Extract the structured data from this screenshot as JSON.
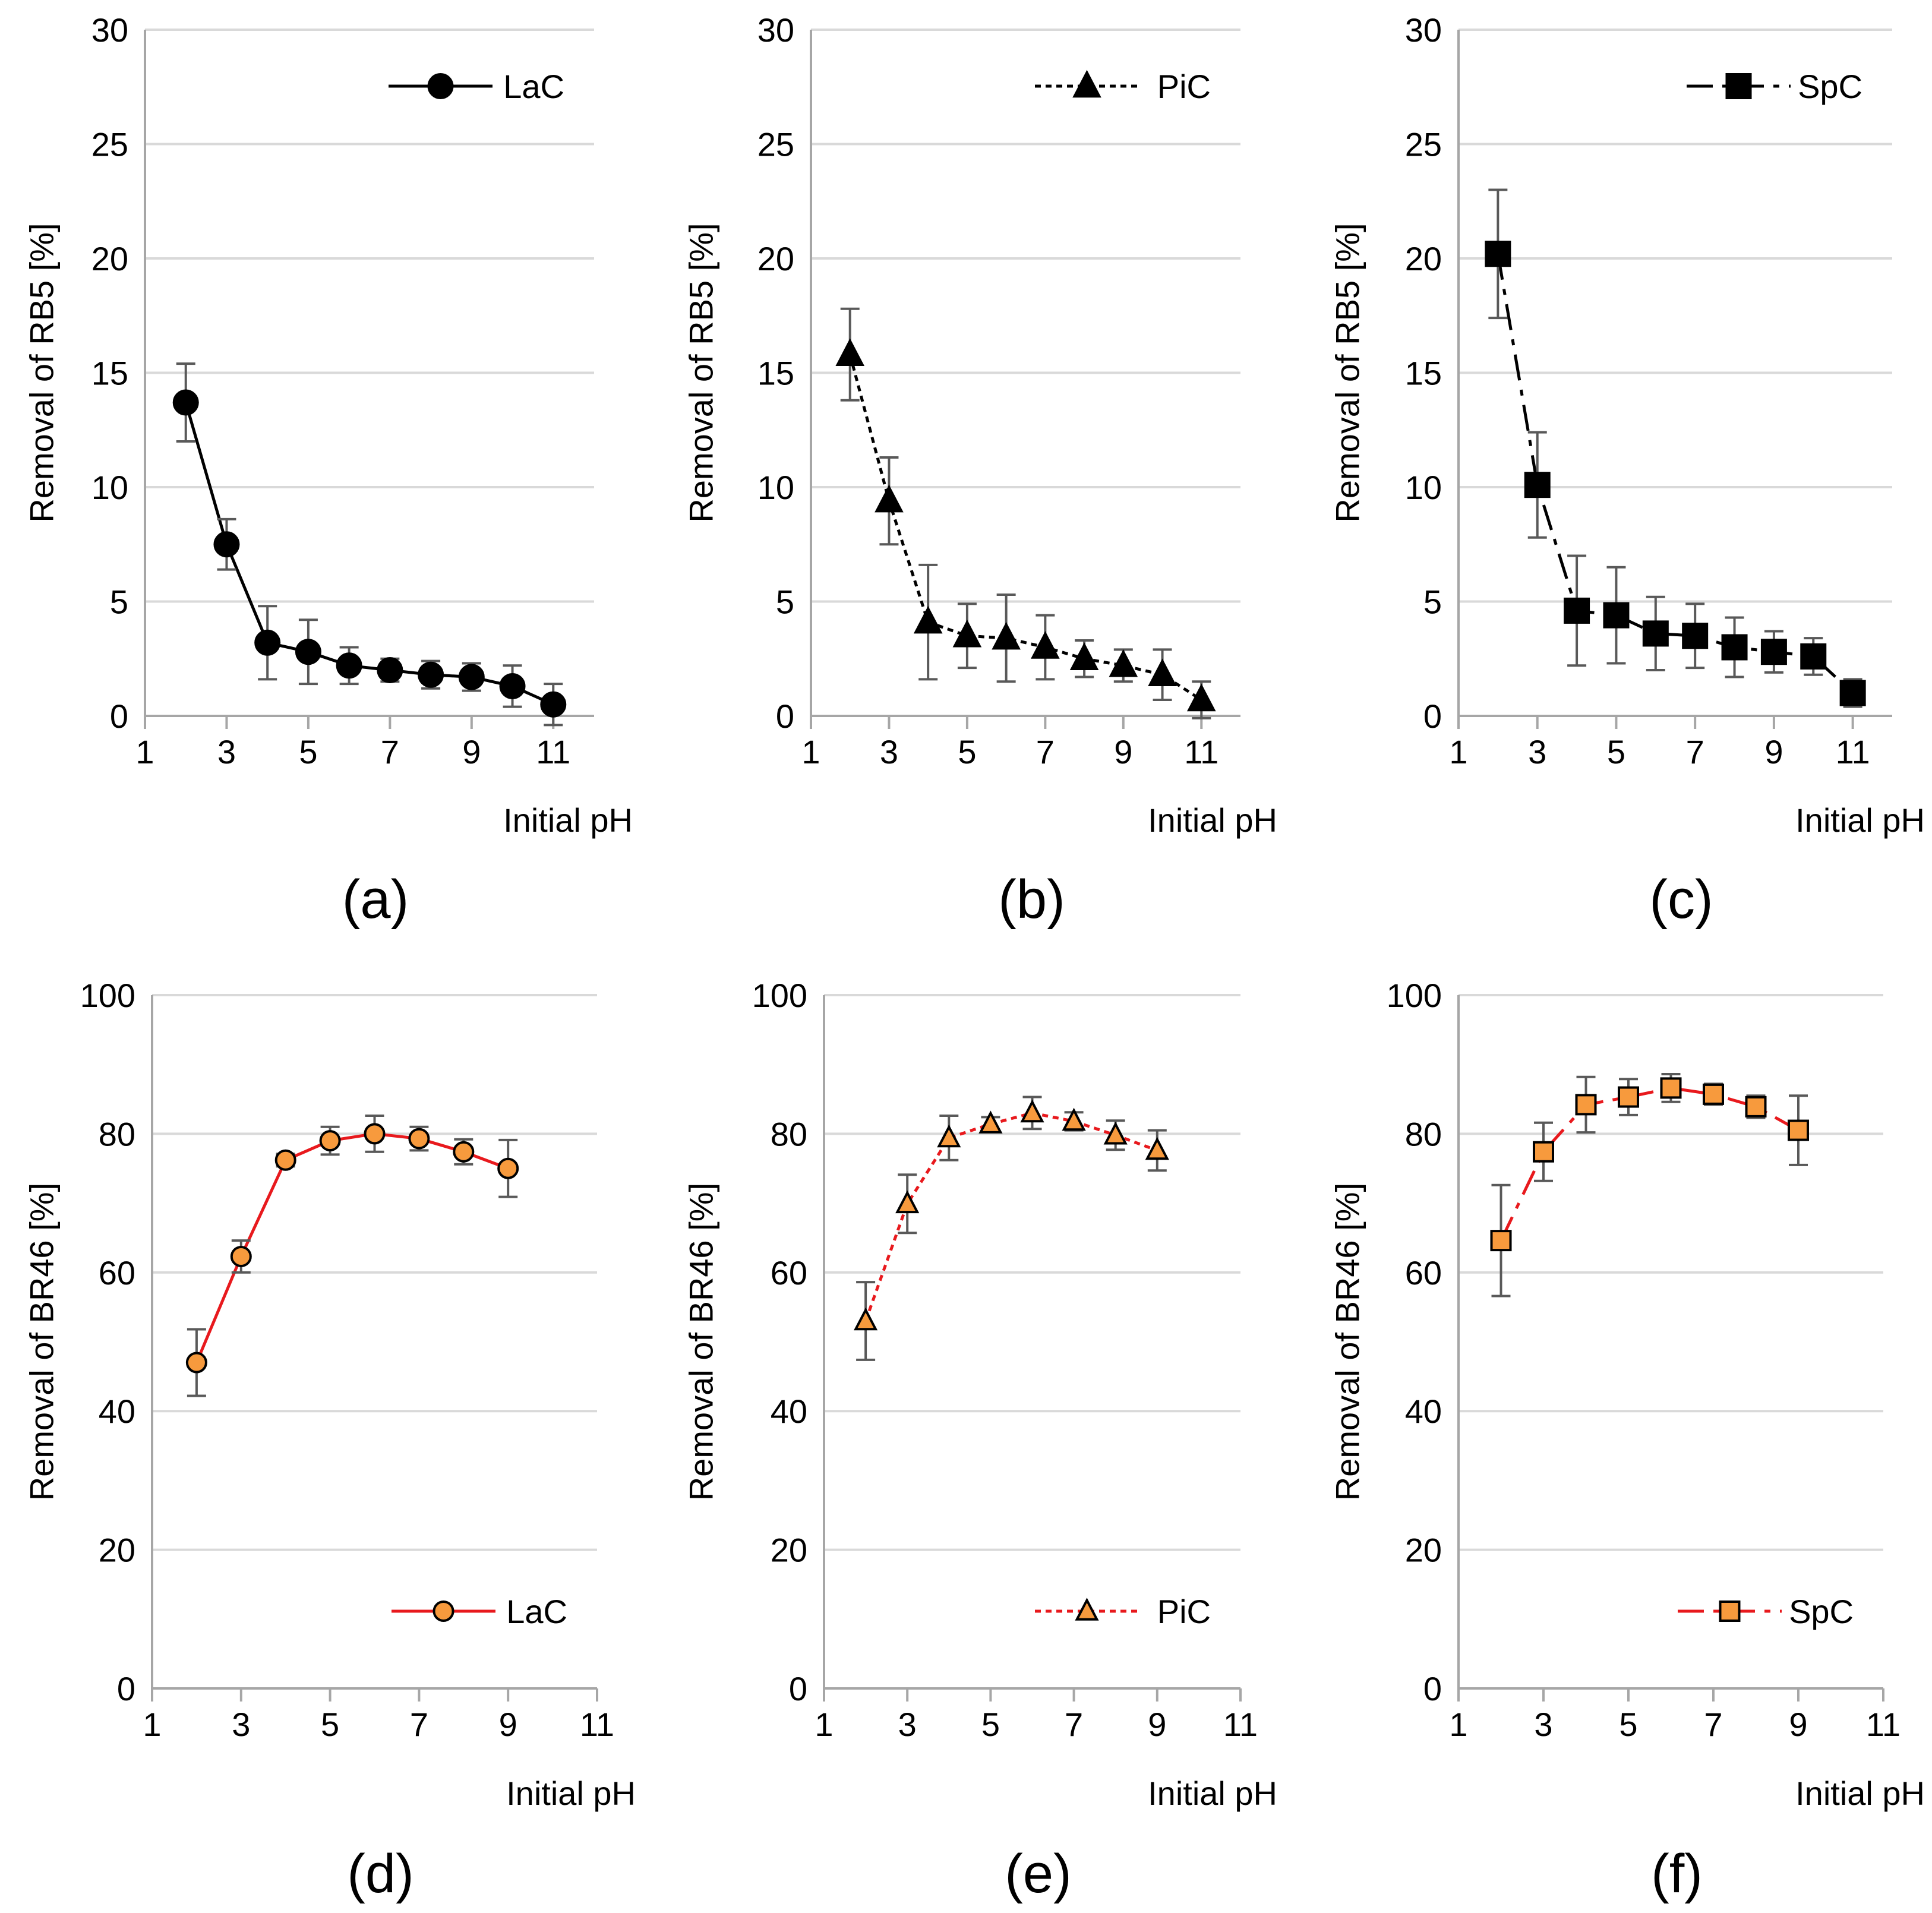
{
  "chart_data": [
    {
      "id": "a",
      "type": "line",
      "panel_label": "(a)",
      "xlabel": "Initial pH",
      "ylabel": "Removal of RB5 [%]",
      "xlim": [
        1,
        12
      ],
      "ylim": [
        0,
        30
      ],
      "xticks": [
        1,
        3,
        5,
        7,
        9,
        11
      ],
      "yticks": [
        0,
        5,
        10,
        15,
        20,
        25,
        30
      ],
      "grid": true,
      "legend_position": "top-right",
      "series": [
        {
          "name": "LaC",
          "marker": "circle",
          "line_style": "solid",
          "line_color": "#000000",
          "marker_fill": "#000000",
          "x": [
            2,
            3,
            4,
            5,
            6,
            7,
            8,
            9,
            10,
            11
          ],
          "y": [
            13.7,
            7.5,
            3.2,
            2.8,
            2.2,
            2.0,
            1.8,
            1.7,
            1.3,
            0.5
          ],
          "err": [
            1.7,
            1.1,
            1.6,
            1.4,
            0.8,
            0.5,
            0.6,
            0.6,
            0.9,
            0.9
          ]
        }
      ]
    },
    {
      "id": "b",
      "type": "line",
      "panel_label": "(b)",
      "xlabel": "Initial pH",
      "ylabel": "Removal of RB5 [%]",
      "xlim": [
        1,
        12
      ],
      "ylim": [
        0,
        30
      ],
      "xticks": [
        1,
        3,
        5,
        7,
        9,
        11
      ],
      "yticks": [
        0,
        5,
        10,
        15,
        20,
        25,
        30
      ],
      "grid": true,
      "legend_position": "top-right",
      "series": [
        {
          "name": "PiC",
          "marker": "triangle",
          "line_style": "dotted",
          "line_color": "#000000",
          "marker_fill": "#000000",
          "x": [
            2,
            3,
            4,
            5,
            6,
            7,
            8,
            9,
            10,
            11
          ],
          "y": [
            15.8,
            9.4,
            4.1,
            3.5,
            3.4,
            3.0,
            2.5,
            2.2,
            1.8,
            0.7
          ],
          "err": [
            2.0,
            1.9,
            2.5,
            1.4,
            1.9,
            1.4,
            0.8,
            0.7,
            1.1,
            0.8
          ]
        }
      ]
    },
    {
      "id": "c",
      "type": "line",
      "panel_label": "(c)",
      "xlabel": "Initial pH",
      "ylabel": "Removal of RB5 [%]",
      "xlim": [
        1,
        12
      ],
      "ylim": [
        0,
        30
      ],
      "xticks": [
        1,
        3,
        5,
        7,
        9,
        11
      ],
      "yticks": [
        0,
        5,
        10,
        15,
        20,
        25,
        30
      ],
      "grid": true,
      "legend_position": "top-right",
      "series": [
        {
          "name": "SpC",
          "marker": "square",
          "line_style": "dashdot",
          "line_color": "#000000",
          "marker_fill": "#000000",
          "x": [
            2,
            3,
            4,
            5,
            6,
            7,
            8,
            9,
            10,
            11
          ],
          "y": [
            20.2,
            10.1,
            4.6,
            4.4,
            3.6,
            3.5,
            3.0,
            2.8,
            2.6,
            1.0
          ],
          "err": [
            2.8,
            2.3,
            2.4,
            2.1,
            1.6,
            1.4,
            1.3,
            0.9,
            0.8,
            0.6
          ]
        }
      ]
    },
    {
      "id": "d",
      "type": "line",
      "panel_label": "(d)",
      "xlabel": "Initial pH",
      "ylabel": "Removal of BR46 [%]",
      "xlim": [
        1,
        11
      ],
      "ylim": [
        0,
        100
      ],
      "xticks": [
        1,
        3,
        5,
        7,
        9,
        11
      ],
      "yticks": [
        0,
        20,
        40,
        60,
        80,
        100
      ],
      "grid": true,
      "legend_position": "bottom-right",
      "series": [
        {
          "name": "LaC",
          "marker": "circle",
          "line_style": "solid",
          "line_color": "#e8191d",
          "marker_fill": "#f79a3d",
          "x": [
            2,
            3,
            4,
            5,
            6,
            7,
            8,
            9
          ],
          "y": [
            47.0,
            62.3,
            76.2,
            79.0,
            80.0,
            79.3,
            77.4,
            75.0
          ],
          "err": [
            4.8,
            2.3,
            0.9,
            2.0,
            2.6,
            1.7,
            1.8,
            4.1
          ]
        }
      ]
    },
    {
      "id": "e",
      "type": "line",
      "panel_label": "(e)",
      "xlabel": "Initial pH",
      "ylabel": "Removal of BR46 [%]",
      "xlim": [
        1,
        11
      ],
      "ylim": [
        0,
        100
      ],
      "xticks": [
        1,
        3,
        5,
        7,
        9,
        11
      ],
      "yticks": [
        0,
        20,
        40,
        60,
        80,
        100
      ],
      "grid": true,
      "legend_position": "bottom-right",
      "series": [
        {
          "name": "PiC",
          "marker": "triangle",
          "line_style": "dotted",
          "line_color": "#e8191d",
          "marker_fill": "#f79a3d",
          "x": [
            2,
            3,
            4,
            5,
            6,
            7,
            8,
            9
          ],
          "y": [
            53.0,
            69.9,
            79.4,
            81.4,
            83.0,
            81.8,
            79.8,
            77.6
          ],
          "err": [
            5.6,
            4.2,
            3.2,
            1.0,
            2.3,
            1.3,
            2.1,
            2.9
          ]
        }
      ]
    },
    {
      "id": "f",
      "type": "line",
      "panel_label": "(f)",
      "xlabel": "Initial pH",
      "ylabel": "Removal of BR46 [%]",
      "xlim": [
        1,
        11
      ],
      "ylim": [
        0,
        100
      ],
      "xticks": [
        1,
        3,
        5,
        7,
        9,
        11
      ],
      "yticks": [
        0,
        20,
        40,
        60,
        80,
        100
      ],
      "grid": true,
      "legend_position": "bottom-right",
      "series": [
        {
          "name": "SpC",
          "marker": "square",
          "line_style": "dashdot",
          "line_color": "#e8191d",
          "marker_fill": "#f79a3d",
          "x": [
            2,
            3,
            4,
            5,
            6,
            7,
            8,
            9
          ],
          "y": [
            64.6,
            77.4,
            84.2,
            85.3,
            86.6,
            85.7,
            83.9,
            80.5
          ],
          "err": [
            8.0,
            4.2,
            4.0,
            2.6,
            2.0,
            1.5,
            1.6,
            5.0
          ]
        }
      ]
    }
  ]
}
